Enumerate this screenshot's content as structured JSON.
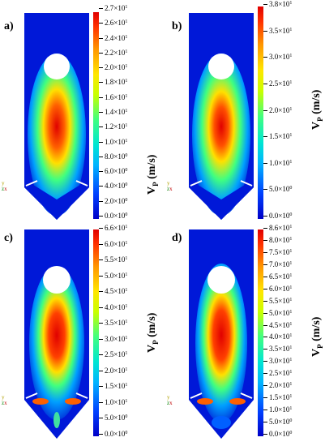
{
  "panels": [
    {
      "label": "a)",
      "colorbar": {
        "title_main": "V",
        "title_sub": "P",
        "title_unit": " (m/s)",
        "ticks": [
          {
            "m": "2.7×10",
            "e": "1"
          },
          {
            "m": "2.6×10",
            "e": "1"
          },
          {
            "m": "2.4×10",
            "e": "1"
          },
          {
            "m": "2.2×10",
            "e": "1"
          },
          {
            "m": "2.0×10",
            "e": "1"
          },
          {
            "m": "1.8×10",
            "e": "1"
          },
          {
            "m": "1.6×10",
            "e": "1"
          },
          {
            "m": "1.4×10",
            "e": "1"
          },
          {
            "m": "1.2×10",
            "e": "1"
          },
          {
            "m": "1.0×10",
            "e": "1"
          },
          {
            "m": "8.0×10",
            "e": "0"
          },
          {
            "m": "6.0×10",
            "e": "0"
          },
          {
            "m": "4.0×10",
            "e": "0"
          },
          {
            "m": "2.0×10",
            "e": "0"
          },
          {
            "m": "0.0×10",
            "e": "0"
          }
        ]
      }
    },
    {
      "label": "b)",
      "colorbar": {
        "title_main": "V",
        "title_sub": "P",
        "title_unit": " (m/s)",
        "ticks": [
          {
            "m": "3.8×10",
            "e": "1"
          },
          {
            "m": "3.5×10",
            "e": "1"
          },
          {
            "m": "3.0×10",
            "e": "1"
          },
          {
            "m": "2.5×10",
            "e": "1"
          },
          {
            "m": "2.0×10",
            "e": "1"
          },
          {
            "m": "1.5×10",
            "e": "1"
          },
          {
            "m": "1.0×10",
            "e": "1"
          },
          {
            "m": "5.0×10",
            "e": "0"
          },
          {
            "m": "0.0×10",
            "e": "0"
          }
        ]
      }
    },
    {
      "label": "c)",
      "colorbar": {
        "title_main": "V",
        "title_sub": "P",
        "title_unit": " (m/s)",
        "ticks": [
          {
            "m": "6.6×10",
            "e": "1"
          },
          {
            "m": "6.0×10",
            "e": "1"
          },
          {
            "m": "5.5×10",
            "e": "1"
          },
          {
            "m": "5.0×10",
            "e": "1"
          },
          {
            "m": "4.5×10",
            "e": "1"
          },
          {
            "m": "4.0×10",
            "e": "1"
          },
          {
            "m": "3.5×10",
            "e": "1"
          },
          {
            "m": "3.0×10",
            "e": "1"
          },
          {
            "m": "2.5×10",
            "e": "1"
          },
          {
            "m": "2.0×10",
            "e": "1"
          },
          {
            "m": "1.5×10",
            "e": "1"
          },
          {
            "m": "1.0×10",
            "e": "1"
          },
          {
            "m": "5.0×10",
            "e": "0"
          },
          {
            "m": "0.0×10",
            "e": "0"
          }
        ]
      }
    },
    {
      "label": "d)",
      "colorbar": {
        "title_main": "V",
        "title_sub": "P",
        "title_unit": " (m/s)",
        "ticks": [
          {
            "m": "8.6×10",
            "e": "1"
          },
          {
            "m": "8.0×10",
            "e": "1"
          },
          {
            "m": "7.5×10",
            "e": "1"
          },
          {
            "m": "7.0×10",
            "e": "1"
          },
          {
            "m": "6.5×10",
            "e": "1"
          },
          {
            "m": "6.0×10",
            "e": "1"
          },
          {
            "m": "5.5×10",
            "e": "1"
          },
          {
            "m": "5.0×10",
            "e": "1"
          },
          {
            "m": "4.5×10",
            "e": "1"
          },
          {
            "m": "4.0×10",
            "e": "1"
          },
          {
            "m": "3.5×10",
            "e": "1"
          },
          {
            "m": "3.0×10",
            "e": "1"
          },
          {
            "m": "2.5×10",
            "e": "1"
          },
          {
            "m": "2.0×10",
            "e": "1"
          },
          {
            "m": "1.5×10",
            "e": "1"
          },
          {
            "m": "1.0×10",
            "e": "1"
          },
          {
            "m": "5.0×10",
            "e": "0"
          },
          {
            "m": "0.0×10",
            "e": "0"
          }
        ]
      }
    }
  ],
  "axes_triad": {
    "y": "y",
    "z": "z",
    "x": "x"
  },
  "colormap": [
    "#0000c8",
    "#00b4ff",
    "#40ff80",
    "#ffe600",
    "#ff3000",
    "#e00000"
  ]
}
